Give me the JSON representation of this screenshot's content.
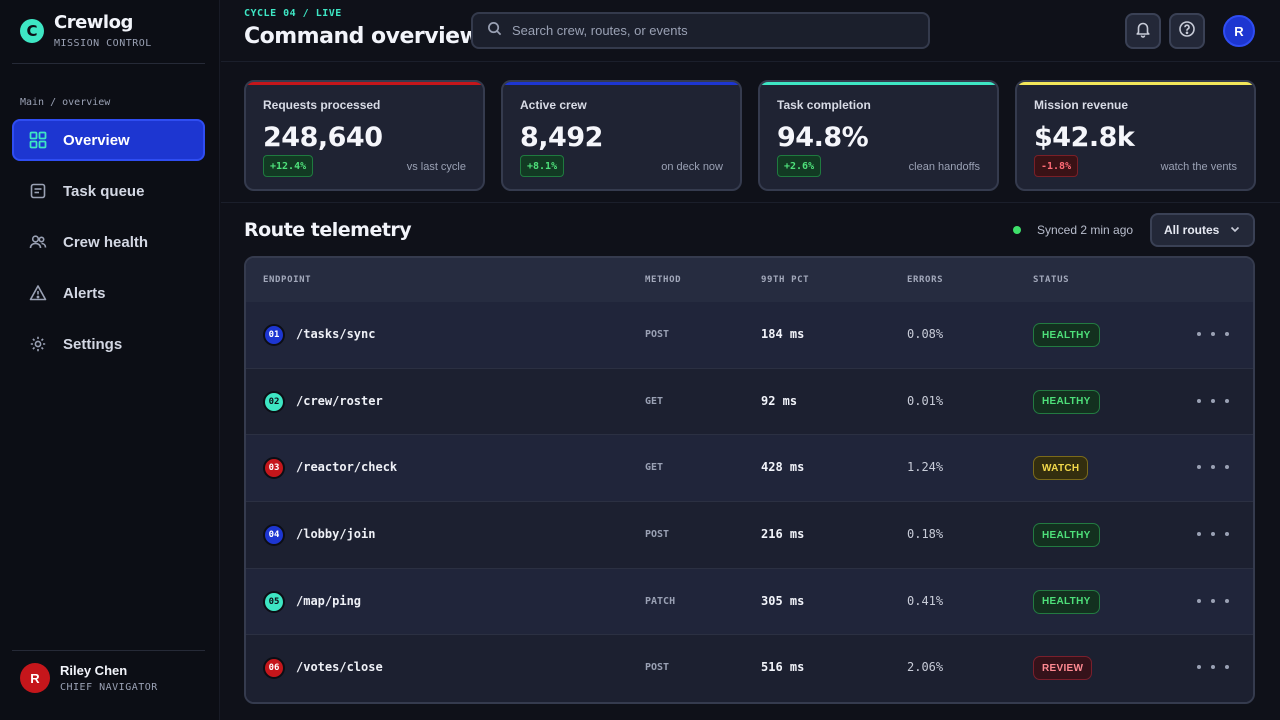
{
  "brand": {
    "logo_letter": "C",
    "name": "Crewlog",
    "subtitle": "MISSION CONTROL"
  },
  "sidebar": {
    "section_label": "Main / overview",
    "items": [
      {
        "label": "Overview",
        "icon": "grid-icon",
        "active": true
      },
      {
        "label": "Task queue",
        "icon": "task-list-icon",
        "active": false
      },
      {
        "label": "Crew health",
        "icon": "users-icon",
        "active": false
      },
      {
        "label": "Alerts",
        "icon": "warning-icon",
        "active": false
      },
      {
        "label": "Settings",
        "icon": "gear-icon",
        "active": false
      }
    ],
    "user": {
      "initial": "R",
      "name": "Riley Chen",
      "role": "CHIEF NAVIGATOR"
    }
  },
  "header": {
    "eyebrow": "CYCLE 04 / LIVE",
    "title": "Command overview",
    "search_placeholder": "Search crew, routes, or events",
    "avatar_initial": "R"
  },
  "stats": [
    {
      "label": "Requests processed",
      "value": "248,640",
      "delta": "+12.4%",
      "direction": "up",
      "note": "vs last cycle",
      "accent": "#c5161b"
    },
    {
      "label": "Active crew",
      "value": "8,492",
      "delta": "+8.1%",
      "direction": "up",
      "note": "on deck now",
      "accent": "#1d36d1"
    },
    {
      "label": "Task completion",
      "value": "94.8%",
      "delta": "+2.6%",
      "direction": "up",
      "note": "clean handoffs",
      "accent": "#3ee6c4"
    },
    {
      "label": "Mission revenue",
      "value": "$42.8k",
      "delta": "-1.8%",
      "direction": "down",
      "note": "watch the vents",
      "accent": "#f2e65a"
    }
  ],
  "telemetry": {
    "title": "Route telemetry",
    "sync_status": "Synced 2 min ago",
    "filter_label": "All routes",
    "columns": [
      "ENDPOINT",
      "METHOD",
      "99TH PCT",
      "ERRORS",
      "STATUS"
    ],
    "rows": [
      {
        "index": "01",
        "index_color": "#1d36d1",
        "index_text": "#ffffff",
        "endpoint": "/tasks/sync",
        "method": "POST",
        "latency": "184 ms",
        "errors": "0.08%",
        "status": "HEALTHY",
        "status_kind": "healthy"
      },
      {
        "index": "02",
        "index_color": "#3ee6c4",
        "index_text": "#0c0e15",
        "endpoint": "/crew/roster",
        "method": "GET",
        "latency": "92 ms",
        "errors": "0.01%",
        "status": "HEALTHY",
        "status_kind": "healthy"
      },
      {
        "index": "03",
        "index_color": "#c5161b",
        "index_text": "#ffffff",
        "endpoint": "/reactor/check",
        "method": "GET",
        "latency": "428 ms",
        "errors": "1.24%",
        "status": "WATCH",
        "status_kind": "watch"
      },
      {
        "index": "04",
        "index_color": "#1d36d1",
        "index_text": "#ffffff",
        "endpoint": "/lobby/join",
        "method": "POST",
        "latency": "216 ms",
        "errors": "0.18%",
        "status": "HEALTHY",
        "status_kind": "healthy"
      },
      {
        "index": "05",
        "index_color": "#3ee6c4",
        "index_text": "#0c0e15",
        "endpoint": "/map/ping",
        "method": "PATCH",
        "latency": "305 ms",
        "errors": "0.41%",
        "status": "HEALTHY",
        "status_kind": "healthy"
      },
      {
        "index": "06",
        "index_color": "#c5161b",
        "index_text": "#ffffff",
        "endpoint": "/votes/close",
        "method": "POST",
        "latency": "516 ms",
        "errors": "2.06%",
        "status": "REVIEW",
        "status_kind": "review"
      }
    ]
  }
}
